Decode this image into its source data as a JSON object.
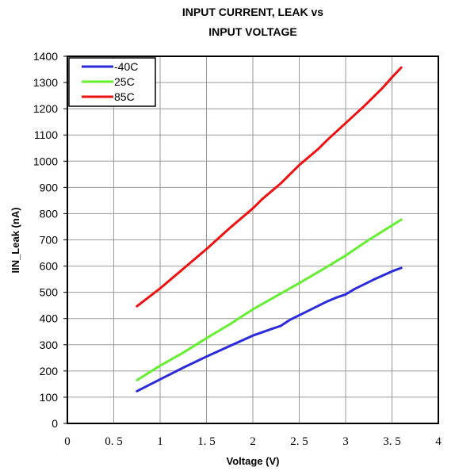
{
  "chart_data": {
    "type": "line",
    "title_lines": [
      "INPUT  CURRENT, LEAK vs",
      "INPUT  VOLTAGE"
    ],
    "xlabel": "Voltage  (V)",
    "ylabel": "IIN_Leak  (nA)",
    "xlim": [
      0,
      4
    ],
    "ylim": [
      0,
      1400
    ],
    "x_ticks": [
      0,
      0.5,
      1,
      1.5,
      2,
      2.5,
      3,
      3.5,
      4
    ],
    "x_tick_labels": [
      "0",
      "0. 5",
      "1",
      "1. 5",
      "2",
      "2. 5",
      "3",
      "3. 5",
      "4"
    ],
    "y_ticks": [
      0,
      100,
      200,
      300,
      400,
      500,
      600,
      700,
      800,
      900,
      1000,
      1100,
      1200,
      1300,
      1400
    ],
    "y_tick_labels": [
      "0",
      "100",
      "200",
      "300",
      "400",
      "500",
      "600",
      "700",
      "800",
      "900",
      "1000",
      "1100",
      "1200",
      "1300",
      "1400"
    ],
    "grid": true,
    "legend_position": "top-left",
    "series": [
      {
        "name": "-40C",
        "color": "#2b2bdd",
        "x": [
          0.75,
          1.0,
          1.25,
          1.5,
          1.75,
          2.0,
          2.2,
          2.3,
          2.4,
          2.6,
          2.8,
          2.9,
          3.0,
          3.1,
          3.3,
          3.5,
          3.6
        ],
        "y": [
          123,
          168,
          213,
          255,
          295,
          335,
          360,
          372,
          395,
          430,
          465,
          480,
          492,
          513,
          548,
          580,
          593
        ]
      },
      {
        "name": "25C",
        "color": "#66ee33",
        "x": [
          0.75,
          1.0,
          1.25,
          1.5,
          1.75,
          2.0,
          2.25,
          2.5,
          2.75,
          3.0,
          3.25,
          3.5,
          3.6
        ],
        "y": [
          165,
          220,
          270,
          325,
          378,
          435,
          485,
          535,
          587,
          640,
          700,
          755,
          777
        ]
      },
      {
        "name": "85C",
        "color": "#ee1111",
        "x": [
          0.75,
          1.0,
          1.25,
          1.5,
          1.75,
          2.0,
          2.1,
          2.3,
          2.5,
          2.7,
          2.8,
          3.0,
          3.2,
          3.4,
          3.5,
          3.6
        ],
        "y": [
          447,
          515,
          590,
          665,
          745,
          820,
          855,
          915,
          985,
          1045,
          1080,
          1145,
          1210,
          1280,
          1320,
          1357
        ]
      }
    ]
  }
}
